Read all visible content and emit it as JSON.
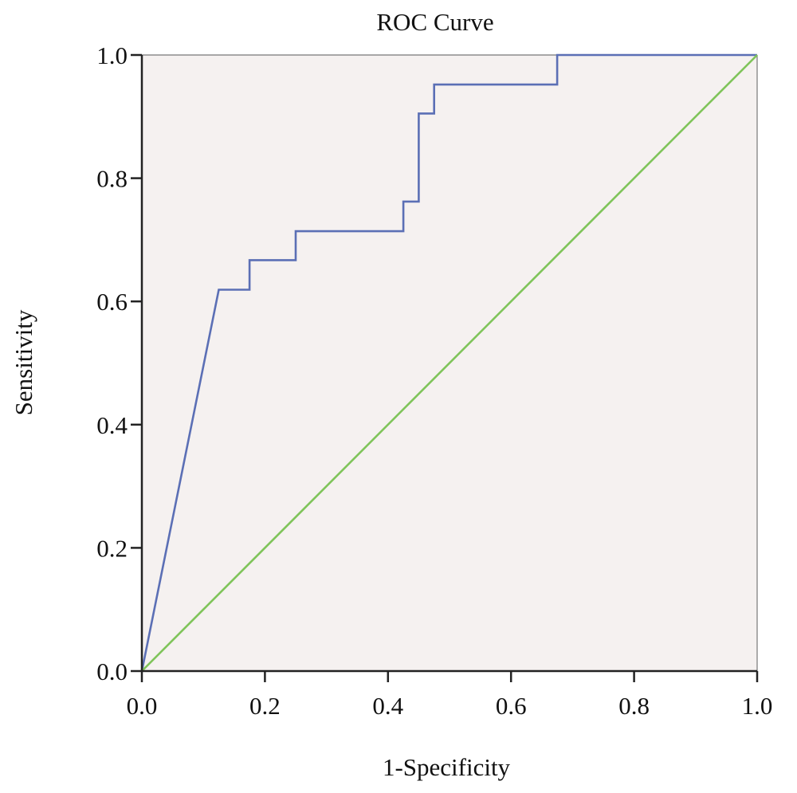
{
  "chart_data": {
    "type": "line",
    "title": "ROC Curve",
    "xlabel": "1-Specificity",
    "ylabel": "Sensitivity",
    "xlim": [
      0.0,
      1.0
    ],
    "ylim": [
      0.0,
      1.0
    ],
    "x_ticks": [
      "0.0",
      "0.2",
      "0.4",
      "0.6",
      "0.8",
      "1.0"
    ],
    "y_ticks": [
      "0.0",
      "0.2",
      "0.4",
      "0.6",
      "0.8",
      "1.0"
    ],
    "grid": false,
    "legend": "none",
    "background_color": "#f5f1f0",
    "series": [
      {
        "color": "#5b6fb5",
        "style": "step",
        "x": [
          0.0,
          0.125,
          0.175,
          0.175,
          0.25,
          0.25,
          0.425,
          0.425,
          0.45,
          0.45,
          0.475,
          0.475,
          0.675,
          0.675,
          1.0
        ],
        "y": [
          0.0,
          0.619,
          0.619,
          0.667,
          0.667,
          0.714,
          0.714,
          0.762,
          0.762,
          0.905,
          0.905,
          0.952,
          0.952,
          1.0,
          1.0
        ]
      },
      {
        "color": "#7fc45a",
        "style": "reference",
        "x": [
          0.0,
          1.0
        ],
        "y": [
          0.0,
          1.0
        ]
      }
    ]
  }
}
